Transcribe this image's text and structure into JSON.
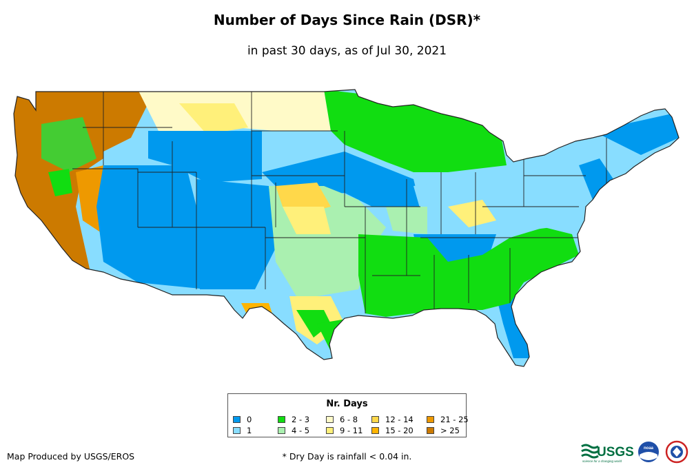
{
  "title": "Number of Days Since Rain (DSR)*",
  "subtitle": "in past 30 days, as of Jul 30, 2021",
  "legend": {
    "title": "Nr. Days",
    "items": [
      {
        "label": "0",
        "color": "#0099ee"
      },
      {
        "label": "1",
        "color": "#88ddff"
      },
      {
        "label": "2 - 3",
        "color": "#11dd11"
      },
      {
        "label": "4 - 5",
        "color": "#aaf0b0"
      },
      {
        "label": "6 - 8",
        "color": "#fffac8"
      },
      {
        "label": "9 - 11",
        "color": "#fff07a"
      },
      {
        "label": "12 - 14",
        "color": "#ffd84a"
      },
      {
        "label": "15 - 20",
        "color": "#ffb400"
      },
      {
        "label": "21 - 25",
        "color": "#ee9900"
      },
      {
        "label": "> 25",
        "color": "#cc7a00"
      }
    ]
  },
  "credit": "Map Produced by USGS/EROS",
  "footnote": "* Dry Day is rainfall < 0.04 in.",
  "logos": {
    "usgs_text": "USGS",
    "usgs_tagline": "science for a changing world",
    "noaa_text": "noaa"
  }
}
